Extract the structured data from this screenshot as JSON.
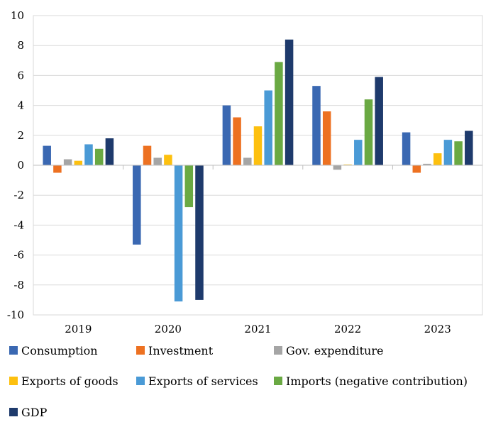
{
  "chart_data": {
    "type": "bar",
    "title": "",
    "xlabel": "",
    "ylabel": "",
    "categories": [
      "2019",
      "2020",
      "2021",
      "2022",
      "2023"
    ],
    "ylim": [
      -10,
      10
    ],
    "yticks": [
      "10",
      "8",
      "6",
      "4",
      "2",
      "0",
      "-2",
      "-4",
      "-6",
      "-8",
      "-10"
    ],
    "grid": true,
    "legend_position": "bottom",
    "series": [
      {
        "name": "Consumption",
        "color": "#3a68b2",
        "values": [
          1.3,
          -5.3,
          4.0,
          5.3,
          2.2
        ]
      },
      {
        "name": "Investment",
        "color": "#ed7121",
        "values": [
          -0.5,
          1.3,
          3.2,
          3.6,
          -0.5
        ]
      },
      {
        "name": "Gov. expenditure",
        "color": "#a5a5a5",
        "values": [
          0.4,
          0.5,
          0.5,
          -0.3,
          0.1
        ]
      },
      {
        "name": "Exports of goods",
        "color": "#fdc00f",
        "values": [
          0.3,
          0.7,
          2.6,
          0.05,
          0.8
        ]
      },
      {
        "name": "Exports of services",
        "color": "#4a9ad6",
        "values": [
          1.4,
          -9.1,
          5.0,
          1.7,
          1.7
        ]
      },
      {
        "name": "Imports (negative contribution)",
        "color": "#6aa943",
        "values": [
          1.1,
          -2.8,
          6.9,
          4.4,
          1.6
        ]
      },
      {
        "name": "GDP",
        "color": "#1e3a6c",
        "values": [
          1.8,
          -9.0,
          8.4,
          5.9,
          2.3
        ]
      }
    ]
  }
}
